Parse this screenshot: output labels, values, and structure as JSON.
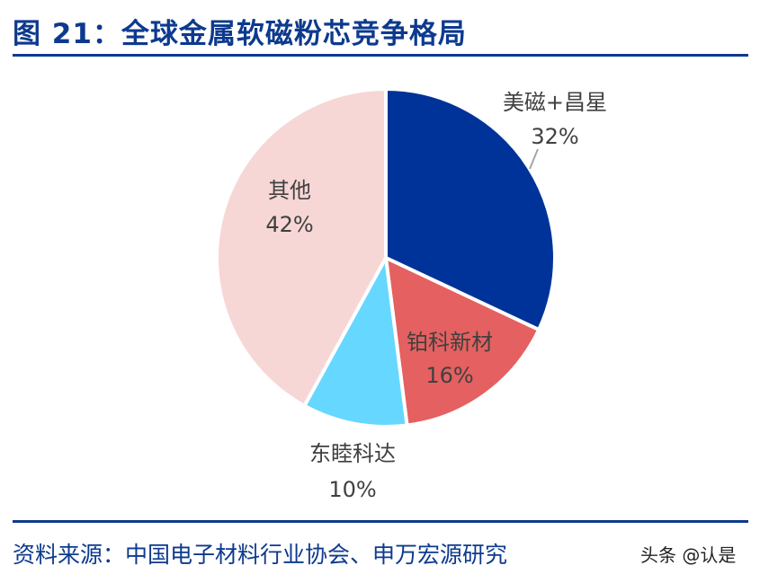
{
  "header": {
    "title": "图 21：全球金属软磁粉芯竞争格局"
  },
  "footer": {
    "source": "资料来源：中国电子材料行业协会、申万宏源研究",
    "watermark": "头条 @认是"
  },
  "colors": {
    "title": "#0d3a8e",
    "slices": [
      "#003399",
      "#e56060",
      "#66d7ff",
      "#f7d6d6"
    ],
    "label_text": "#404040",
    "leader_line": "#a6a6a6"
  },
  "chart_data": {
    "type": "pie",
    "title": "",
    "slices": [
      {
        "label": "美磁+昌星",
        "value": 32,
        "display": "32%"
      },
      {
        "label": "铂科新材",
        "value": 16,
        "display": "16%"
      },
      {
        "label": "东睦科达",
        "value": 10,
        "display": "10%"
      },
      {
        "label": "其他",
        "value": 42,
        "display": "42%"
      }
    ],
    "start": "12 o'clock",
    "direction": "clockwise",
    "legend": "none",
    "label_position": "outside for 美磁+昌星 and 东睦科达; inside for 铂科新材 and 其他"
  }
}
